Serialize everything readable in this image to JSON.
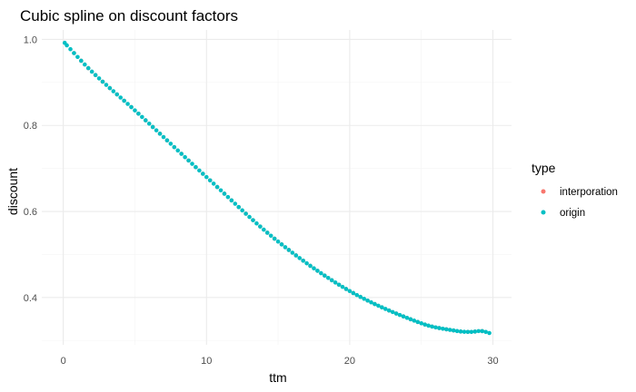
{
  "chart_data": {
    "type": "scatter",
    "title": "Cubic spline on discount factors",
    "xlabel": "ttm",
    "ylabel": "discount",
    "xlim": [
      -1.5,
      31.3
    ],
    "ylim": [
      0.29,
      1.022
    ],
    "x_ticks": [
      0,
      10,
      20,
      30
    ],
    "x_tick_labels": [
      "0",
      "10",
      "20",
      "30"
    ],
    "y_ticks": [
      0.4,
      0.6,
      0.8,
      1.0
    ],
    "y_tick_labels": [
      "0.4",
      "0.6",
      "0.8",
      "1.0"
    ],
    "grid": true,
    "legend": {
      "title": "type",
      "position": "right",
      "entries": [
        "interporation",
        "origin"
      ]
    },
    "colors": {
      "interporation": "#F8766D",
      "origin": "#00BFC4"
    },
    "curve_knots": [
      [
        0.0,
        0.995
      ],
      [
        2.0,
        0.925
      ],
      [
        5.0,
        0.835
      ],
      [
        10.0,
        0.68
      ],
      [
        15.0,
        0.53
      ],
      [
        20.0,
        0.415
      ],
      [
        25.0,
        0.34
      ],
      [
        27.5,
        0.322
      ],
      [
        28.5,
        0.32
      ],
      [
        29.2,
        0.322
      ],
      [
        29.9,
        0.316
      ]
    ],
    "series": [
      {
        "name": "interporation",
        "x_start": 0.75,
        "x_end": 29.25,
        "step": 0.5
      },
      {
        "name": "origin",
        "x_start": 0.25,
        "x_end": 29.75,
        "step": 0.25
      }
    ],
    "extra_points": [
      {
        "series": "origin",
        "x": 0.1,
        "y": 0.992
      }
    ]
  }
}
